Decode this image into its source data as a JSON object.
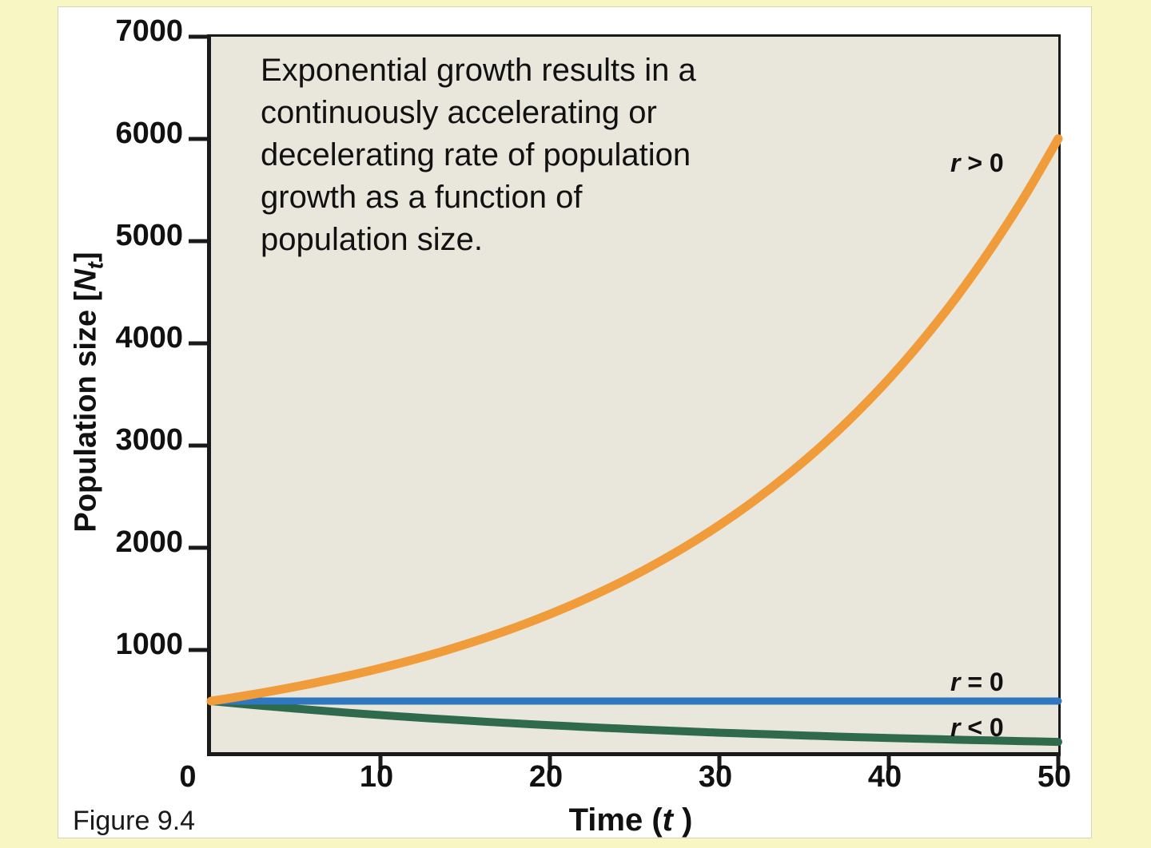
{
  "figure": {
    "caption": "Figure 9.4",
    "annotation_lines": [
      "Exponential growth results in a",
      "continuously accelerating or",
      "decelerating rate of population",
      "growth as a function of",
      "population size."
    ]
  },
  "colors": {
    "page_bg": "#f8f7c4",
    "card_bg": "#ffffff",
    "plot_bg": "#e9e6dc",
    "axis": "#1a1a1a",
    "text": "#111111"
  },
  "chart_data": {
    "type": "line",
    "title": "",
    "xlabel": "Time (t )",
    "ylabel": "Population size [Nt]",
    "xlabel_parts": {
      "main": "Time (",
      "var": "t",
      "close": " )"
    },
    "ylabel_parts": {
      "main": "Population size [",
      "var": "N",
      "sub": "t",
      "close": "]"
    },
    "xlim": [
      0,
      50
    ],
    "ylim": [
      0,
      7000
    ],
    "x_ticks": [
      0,
      10,
      20,
      30,
      40,
      50
    ],
    "y_ticks": [
      1000,
      2000,
      3000,
      4000,
      5000,
      6000,
      7000
    ],
    "grid": false,
    "legend_position": "right-inline",
    "series": [
      {
        "name": "r-positive",
        "label": "r > 0",
        "color": "#f09c3b",
        "stroke_width": 11,
        "x": [
          0,
          2,
          4,
          6,
          8,
          10,
          12,
          14,
          16,
          18,
          20,
          22,
          24,
          26,
          28,
          30,
          32,
          34,
          36,
          38,
          40,
          42,
          44,
          46,
          48,
          50
        ],
        "y": [
          500,
          552,
          610,
          674,
          744,
          822,
          908,
          1003,
          1108,
          1223,
          1351,
          1492,
          1648,
          1821,
          2011,
          2221,
          2453,
          2710,
          2993,
          3306,
          3651,
          4033,
          4454,
          4920,
          5434,
          6002
        ]
      },
      {
        "name": "r-zero",
        "label": "r = 0",
        "color": "#2f77bf",
        "stroke_width": 9,
        "x": [
          0,
          50
        ],
        "y": [
          500,
          500
        ]
      },
      {
        "name": "r-negative",
        "label": "r < 0",
        "color": "#2e6a4b",
        "stroke_width": 10,
        "x": [
          0,
          2,
          4,
          6,
          8,
          10,
          12,
          14,
          16,
          18,
          20,
          22,
          24,
          26,
          28,
          30,
          32,
          34,
          36,
          38,
          40,
          42,
          44,
          46,
          48,
          50
        ],
        "y": [
          500,
          469,
          440,
          413,
          387,
          363,
          341,
          320,
          300,
          281,
          264,
          247,
          232,
          218,
          204,
          191,
          180,
          169,
          158,
          148,
          139,
          131,
          122,
          115,
          108,
          101
        ]
      }
    ]
  }
}
